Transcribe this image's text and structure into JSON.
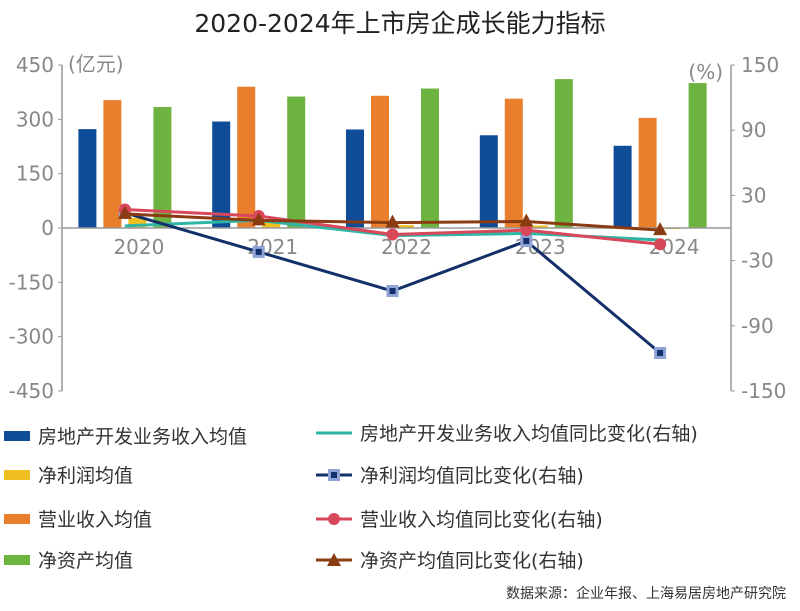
{
  "chart_data": {
    "type": "bar",
    "title": "2020-2024年上市房企成长能力指标",
    "categories": [
      "2020",
      "2021",
      "2022",
      "2023",
      "2024"
    ],
    "left_axis": {
      "unit_label": "(亿元)",
      "ylim": [
        -450,
        450
      ],
      "ticks": [
        450,
        300,
        150,
        0,
        -150,
        -300,
        -450
      ]
    },
    "right_axis": {
      "unit_label": "(%)",
      "ylim": [
        -150,
        150
      ],
      "ticks": [
        150,
        90,
        30,
        -30,
        -90,
        -150
      ]
    },
    "bar_series": [
      {
        "name": "房地产开发业务收入均值",
        "color": "#0f4c97",
        "values": [
          273,
          294,
          272,
          256,
          227
        ]
      },
      {
        "name": "营业收入均值",
        "color": "#e97f2c",
        "values": [
          353,
          390,
          365,
          357,
          304
        ]
      },
      {
        "name": "净利润均值",
        "color": "#f0c020",
        "values": [
          28,
          18,
          8,
          7,
          -3
        ]
      },
      {
        "name": "净资产均值",
        "color": "#6db33f",
        "values": [
          334,
          363,
          385,
          411,
          400
        ]
      }
    ],
    "line_series": [
      {
        "name": "房地产开发业务收入均值同比变化(右轴)",
        "color": "#2fb5a6",
        "marker": "none",
        "values": [
          2,
          7,
          -7,
          -5,
          -11
        ]
      },
      {
        "name": "净利润均值同比变化(右轴)",
        "color": "#14306a",
        "marker": "square",
        "marker_fill": "#8fa3d6",
        "values": [
          14,
          -22,
          -58,
          -12,
          -115
        ]
      },
      {
        "name": "营业收入均值同比变化(右轴)",
        "color": "#d9475a",
        "marker": "circle",
        "values": [
          17,
          11,
          -6,
          -2,
          -15
        ]
      },
      {
        "name": "净资产均值同比变化(右轴)",
        "color": "#8a3b12",
        "marker": "triangle",
        "values": [
          13,
          7,
          5,
          6,
          -2
        ]
      }
    ],
    "grid": false,
    "legend_position": "bottom"
  },
  "legend": {
    "left": [
      "房地产开发业务收入均值",
      "净利润均值",
      "营业收入均值",
      "净资产均值"
    ],
    "right": [
      "房地产开发业务收入均值同比变化(右轴)",
      "净利润均值同比变化(右轴)",
      "营业收入均值同比变化(右轴)",
      "净资产均值同比变化(右轴)"
    ]
  },
  "source": "数据来源：企业年报、上海易居房地产研究院"
}
